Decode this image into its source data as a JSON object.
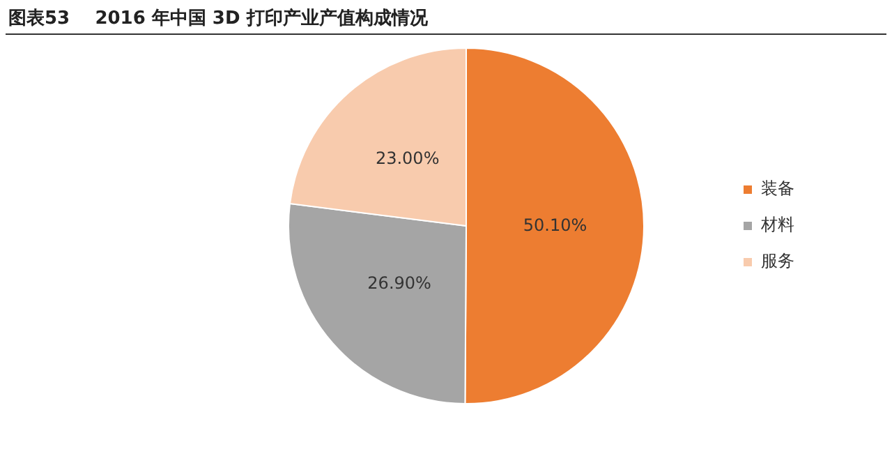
{
  "chart_data": {
    "type": "pie",
    "title": "图表53    2016 年中国 3D 打印产业产值构成情况",
    "categories": [
      "装备",
      "材料",
      "服务"
    ],
    "values": [
      50.1,
      26.9,
      23.0
    ],
    "value_labels": [
      "50.10%",
      "26.90%",
      "23.00%"
    ],
    "colors": [
      "#ed7d31",
      "#a5a5a5",
      "#f8cbad"
    ],
    "legend": "right"
  }
}
